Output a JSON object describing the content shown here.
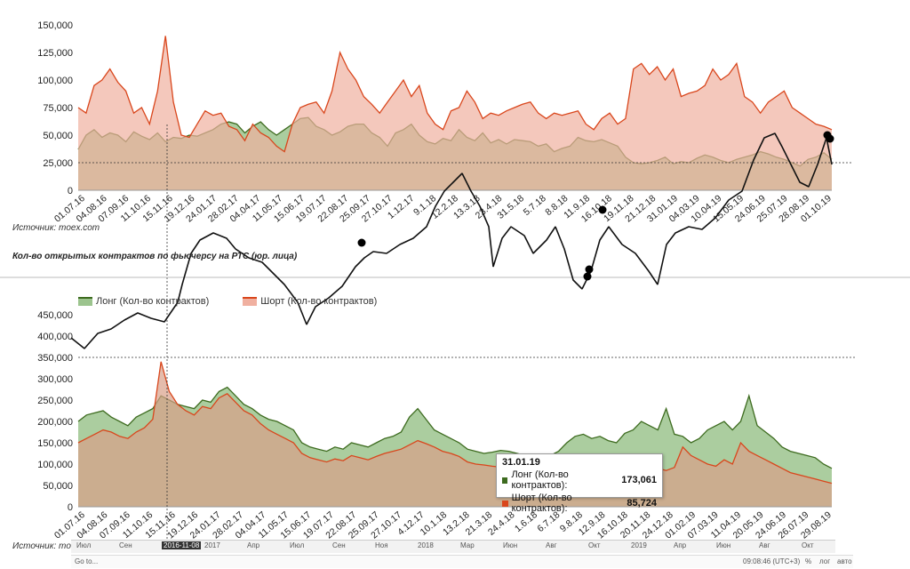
{
  "chart_data": [
    {
      "type": "area",
      "subtitle": "",
      "ylim": [
        0,
        150000
      ],
      "yticks": [
        "150,000",
        "125,000",
        "100,000",
        "75,000",
        "50,000",
        "25,000",
        "0"
      ],
      "x_ticks": [
        "01.07.16",
        "04.08.16",
        "07.09.16",
        "11.10.16",
        "15.11.16",
        "19.12.16",
        "24.01.17",
        "28.02.17",
        "04.04.17",
        "11.05.17",
        "15.06.17",
        "19.07.17",
        "22.08.17",
        "25.09.17",
        "27.10.17",
        "1.12.17",
        "9.1.18",
        "12.2.18",
        "13.3.18",
        "23.4.18",
        "31.5.18",
        "5.7.18",
        "8.8.18",
        "11.9.18",
        "16.10.18",
        "19.11.18",
        "21.12.18",
        "31.01.19",
        "04.03.19",
        "10.04.19",
        "15.05.19",
        "24.06.19",
        "25.07.19",
        "28.08.19",
        "01.10.19"
      ],
      "reference_line": 25000,
      "series": [
        {
          "name": "",
          "color": "#3d6b1f",
          "fill": "#9cc48e",
          "values": [
            37000,
            50000,
            55000,
            48000,
            52000,
            50000,
            44000,
            53000,
            49000,
            46000,
            52000,
            44000,
            48000,
            47000,
            50000,
            49000,
            52000,
            55000,
            60000,
            62000,
            60000,
            52000,
            58000,
            62000,
            55000,
            50000,
            55000,
            60000,
            65000,
            66000,
            58000,
            55000,
            50000,
            53000,
            58000,
            60000,
            60000,
            52000,
            48000,
            40000,
            52000,
            55000,
            60000,
            50000,
            44000,
            42000,
            47000,
            45000,
            55000,
            48000,
            45000,
            52000,
            43000,
            46000,
            42000,
            46000,
            45000,
            44000,
            40000,
            42000,
            35000,
            38000,
            40000,
            48000,
            45000,
            44000,
            46000,
            43000,
            40000,
            30000,
            25000,
            24000,
            25000,
            27000,
            30000,
            24000,
            26000,
            25000,
            29000,
            32000,
            30000,
            27000,
            25000,
            28000,
            30000,
            32000,
            35000,
            33000,
            30000,
            28000,
            25000,
            22000,
            28000,
            30000,
            34000,
            28000
          ]
        },
        {
          "name": "",
          "color": "#d9461c",
          "fill": "#f0b0a0",
          "values": [
            75000,
            70000,
            95000,
            100000,
            110000,
            98000,
            90000,
            70000,
            75000,
            60000,
            90000,
            140000,
            80000,
            50000,
            48000,
            60000,
            72000,
            68000,
            70000,
            58000,
            55000,
            45000,
            60000,
            52000,
            48000,
            40000,
            35000,
            60000,
            75000,
            78000,
            80000,
            70000,
            90000,
            125000,
            110000,
            100000,
            85000,
            78000,
            70000,
            80000,
            90000,
            100000,
            85000,
            95000,
            70000,
            60000,
            55000,
            72000,
            75000,
            90000,
            80000,
            65000,
            70000,
            68000,
            72000,
            75000,
            78000,
            80000,
            70000,
            65000,
            70000,
            68000,
            70000,
            72000,
            60000,
            55000,
            65000,
            70000,
            60000,
            65000,
            110000,
            115000,
            105000,
            112000,
            100000,
            110000,
            85000,
            88000,
            90000,
            95000,
            110000,
            100000,
            105000,
            115000,
            85000,
            80000,
            70000,
            80000,
            85000,
            90000,
            75000,
            70000,
            65000,
            60000,
            58000,
            55000
          ]
        }
      ]
    },
    {
      "type": "area",
      "ylim": [
        0,
        450000
      ],
      "yticks": [
        "450,000",
        "400,000",
        "350,000",
        "300,000",
        "250,000",
        "200,000",
        "150,000",
        "100,000",
        "50,000",
        "0"
      ],
      "x_ticks": [
        "01.07.16",
        "04.08.16",
        "07.09.16",
        "11.10.16",
        "15.11.16",
        "19.12.16",
        "24.01.17",
        "28.02.17",
        "04.04.17",
        "11.05.17",
        "15.06.17",
        "19.07.17",
        "22.08.17",
        "25.09.17",
        "27.10.17",
        "4.12.17",
        "10.1.18",
        "13.2.18",
        "21.3.18",
        "24.4.18",
        "1.6.18",
        "6.7.18",
        "9.8.18",
        "12.9.18",
        "16.10.18",
        "20.11.18",
        "24.12.18",
        "01.02.19",
        "07.03.19",
        "11.04.19",
        "20.05.19",
        "24.06.19",
        "26.07.19",
        "29.08.19"
      ],
      "series": [
        {
          "name": "Лонг (Кол-во контрактов)",
          "color": "#3d6b1f",
          "fill": "#9cc48e",
          "values": [
            200000,
            215000,
            220000,
            225000,
            210000,
            200000,
            190000,
            210000,
            220000,
            230000,
            260000,
            250000,
            240000,
            235000,
            230000,
            250000,
            245000,
            270000,
            280000,
            260000,
            240000,
            230000,
            215000,
            205000,
            200000,
            190000,
            180000,
            150000,
            140000,
            135000,
            130000,
            140000,
            135000,
            150000,
            145000,
            140000,
            150000,
            160000,
            165000,
            175000,
            210000,
            230000,
            205000,
            180000,
            170000,
            160000,
            150000,
            135000,
            130000,
            125000,
            128000,
            132000,
            130000,
            125000,
            120000,
            115000,
            110000,
            120000,
            130000,
            150000,
            165000,
            170000,
            160000,
            165000,
            155000,
            150000,
            172000,
            180000,
            200000,
            190000,
            180000,
            230000,
            170000,
            165000,
            150000,
            160000,
            180000,
            190000,
            200000,
            180000,
            200000,
            260000,
            190000,
            175000,
            160000,
            140000,
            130000,
            125000,
            120000,
            115000,
            100000,
            90000
          ]
        },
        {
          "name": "Шорт (Кол-во контрактов)",
          "color": "#d9461c",
          "fill": "#d9a089",
          "values": [
            150000,
            160000,
            170000,
            180000,
            175000,
            165000,
            160000,
            175000,
            185000,
            205000,
            340000,
            270000,
            240000,
            225000,
            215000,
            235000,
            230000,
            255000,
            265000,
            245000,
            225000,
            215000,
            195000,
            180000,
            170000,
            160000,
            150000,
            125000,
            115000,
            110000,
            105000,
            112000,
            108000,
            120000,
            115000,
            110000,
            118000,
            125000,
            130000,
            135000,
            145000,
            155000,
            148000,
            140000,
            130000,
            125000,
            118000,
            105000,
            100000,
            98000,
            95000,
            93000,
            90000,
            88000,
            86000,
            85000,
            84000,
            88000,
            92000,
            95000,
            100000,
            105000,
            100000,
            98000,
            95000,
            92000,
            90000,
            95000,
            100000,
            98000,
            90000,
            85000,
            92000,
            140000,
            120000,
            110000,
            100000,
            95000,
            110000,
            100000,
            150000,
            130000,
            120000,
            110000,
            100000,
            90000,
            80000,
            75000,
            70000,
            65000,
            60000,
            55000
          ]
        }
      ],
      "legend_location": "top-left"
    }
  ],
  "source_top": "Источник: moex.com",
  "source_bottom": "Источник: mo",
  "subtitle_mid": "Кол-во открытых контрактов по фьючерсу на РТС (юр. лица)",
  "legend": {
    "long": "Лонг (Кол-во контрактов)",
    "short": "Шорт (Кол-во контрактов)"
  },
  "tooltip": {
    "date": "31.01.19",
    "long_label": "Лонг (Кол-во контрактов):",
    "long_value": "173,061",
    "short_label": "Шорт (Кол-во контрактов):",
    "short_value": "85,724"
  },
  "navigator": {
    "labels": [
      "Июл",
      "Сен",
      "2016-11-08",
      "2017",
      "Апр",
      "Июл",
      "Сен",
      "Ноя",
      "2018",
      "Мар",
      "Июн",
      "Авг",
      "Окт",
      "2019",
      "Апр",
      "Июн",
      "Авг",
      "Окт"
    ]
  },
  "statusbar": {
    "left": "Go to...",
    "time": "09:08:46 (UTC+3)",
    "percent": "%",
    "log": "лог",
    "auto": "авто"
  },
  "colors": {
    "long": "#3d6b1f",
    "short": "#d9461c",
    "price": "#111111"
  }
}
